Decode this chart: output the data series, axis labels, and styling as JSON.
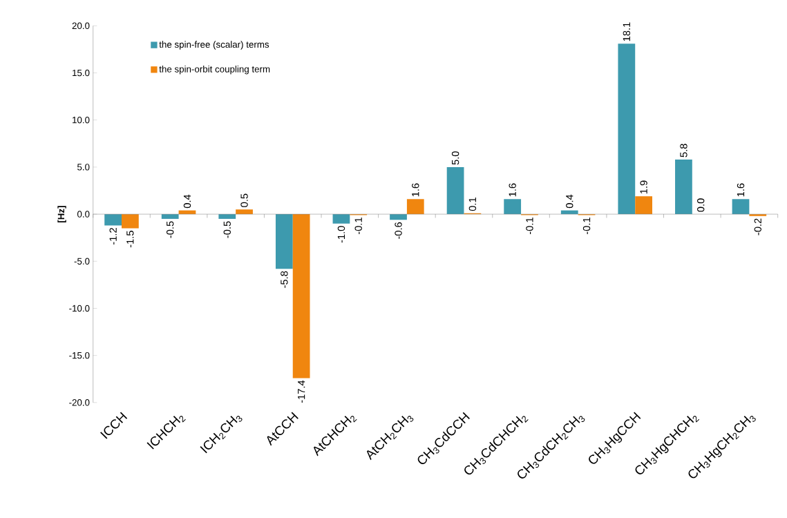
{
  "chart_data": {
    "type": "bar",
    "ylabel": "[Hz]",
    "categories": [
      "ICCH",
      "ICHCH$_{2}$",
      "ICH$_{2}$CH$_{3}$",
      "AtCCH",
      "AtCHCH$_{2}$",
      "AtCH$_{2}$CH$_{3}$",
      "CH$_{3}$CdCCH",
      "CH$_{3}$CdCHCH$_{2}$",
      "CH$_{3}$CdCH$_{2}$CH$_{3}$",
      "CH$_{3}$HgCCH",
      "CH$_{3}$HgCHCH$_{2}$",
      "CH$_{3}$HgCH$_{2}$CH$_{3}$"
    ],
    "series": [
      {
        "name": "the spin-free (scalar) terms",
        "color": "#3d9aae",
        "values": [
          -1.2,
          -0.5,
          -0.5,
          -5.8,
          -1.0,
          -0.6,
          5.0,
          1.6,
          0.4,
          18.1,
          5.8,
          1.6
        ],
        "value_labels": [
          "-1.2",
          "-0.5",
          "-0.5",
          "-5.8",
          "-1.0",
          "-0.6",
          "5.0",
          "1.6",
          "0.4",
          "18.1",
          "5.8",
          "1.6"
        ]
      },
      {
        "name": "the spin-orbit coupling term",
        "color": "#f0860f",
        "values": [
          -1.5,
          0.4,
          0.5,
          -17.4,
          -0.1,
          1.6,
          0.1,
          -0.1,
          -0.1,
          1.9,
          0.0,
          -0.2
        ],
        "value_labels": [
          "-1.5",
          "0.4",
          "0.5",
          "-17.4",
          "-0.1",
          "1.6",
          "0.1",
          "-0.1",
          "-0.1",
          "1.9",
          "0.0",
          "-0.2"
        ]
      }
    ],
    "ylim": [
      -20,
      20
    ],
    "yticks": [
      {
        "value": -20,
        "label": "-20.0"
      },
      {
        "value": -15,
        "label": "-15.0"
      },
      {
        "value": -10,
        "label": "-10.0"
      },
      {
        "value": -5,
        "label": "-5.0"
      },
      {
        "value": 0,
        "label": "0.0"
      },
      {
        "value": 5,
        "label": "5.0"
      },
      {
        "value": 10,
        "label": "10.0"
      },
      {
        "value": 15,
        "label": "15.0"
      },
      {
        "value": 20,
        "label": "20.0"
      }
    ],
    "legend": "top left"
  }
}
